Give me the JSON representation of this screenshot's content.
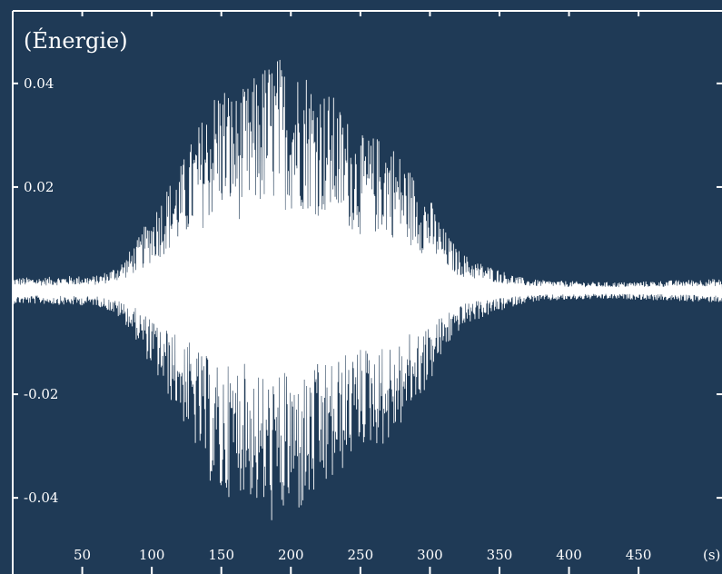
{
  "chart_data": {
    "type": "line",
    "title": "",
    "ylabel": "(Énergie)",
    "xlabel": "(s)",
    "xlim": [
      0,
      510
    ],
    "ylim": [
      -0.054,
      0.054
    ],
    "xticks": [
      50,
      100,
      150,
      200,
      250,
      300,
      350,
      400,
      450
    ],
    "yticks": [
      0.04,
      0.02,
      -0.02,
      -0.04
    ],
    "ytick_labels": [
      "0.04",
      "0.02",
      "-0.02",
      "-0.04"
    ],
    "grid": false,
    "legend": "none",
    "colors": {
      "background": "#1f3a56",
      "line": "#ffffff"
    },
    "series": [
      {
        "x": [
          0,
          20,
          40,
          60,
          70,
          80,
          90,
          100,
          110,
          120,
          130,
          140,
          150,
          160,
          170,
          180,
          190,
          200,
          210,
          220,
          230,
          240,
          250,
          260,
          270,
          280,
          290,
          300,
          310,
          320,
          330,
          340,
          350,
          360,
          370,
          380,
          400,
          420,
          440,
          460,
          480,
          500,
          510
        ],
        "y_amplitude": [
          0.0025,
          0.0025,
          0.0028,
          0.0028,
          0.004,
          0.006,
          0.01,
          0.015,
          0.02,
          0.024,
          0.03,
          0.036,
          0.042,
          0.038,
          0.04,
          0.044,
          0.046,
          0.043,
          0.044,
          0.04,
          0.038,
          0.034,
          0.03,
          0.03,
          0.03,
          0.026,
          0.022,
          0.018,
          0.012,
          0.008,
          0.006,
          0.005,
          0.004,
          0.003,
          0.0022,
          0.002,
          0.0018,
          0.0016,
          0.0016,
          0.0018,
          0.002,
          0.0022,
          0.0022
        ]
      }
    ]
  }
}
